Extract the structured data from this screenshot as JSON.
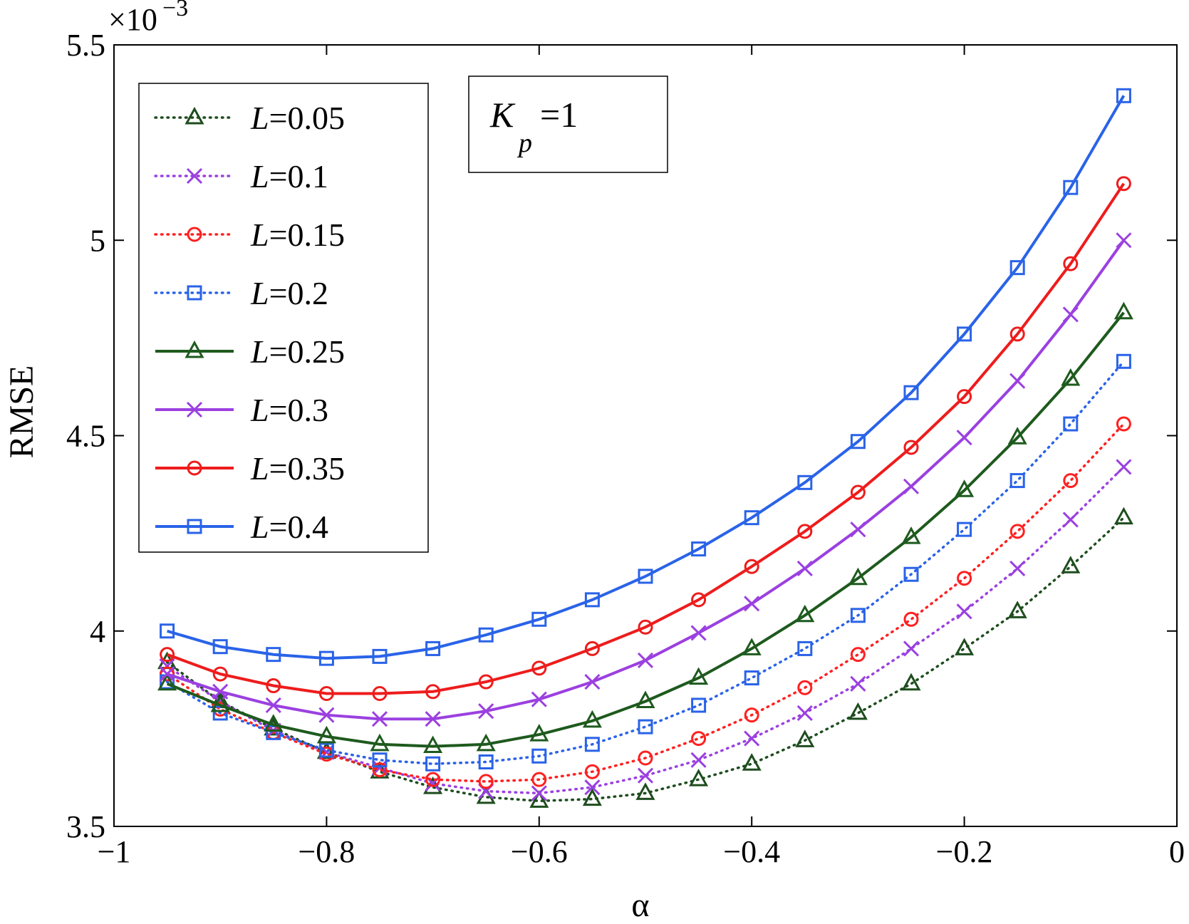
{
  "chart_data": {
    "type": "line",
    "xlabel": "α",
    "ylabel": "RMSE",
    "xlim": [
      -1,
      0
    ],
    "ylim": [
      3.5,
      5.5
    ],
    "y_exponent": "×10",
    "y_exponent_power": "−3",
    "xticks": [
      -1,
      -0.8,
      -0.6,
      -0.4,
      -0.2,
      0
    ],
    "xtick_labels": [
      "−1",
      "−0.8",
      "−0.6",
      "−0.4",
      "−0.2",
      "0"
    ],
    "yticks": [
      3.5,
      4,
      4.5,
      5,
      5.5
    ],
    "ytick_labels": [
      "3.5",
      "4",
      "4.5",
      "5",
      "5.5"
    ],
    "grid": false,
    "legend_position": "top-left",
    "annotation": {
      "main": "K",
      "sub": "p",
      "rest": "=1"
    },
    "x": [
      -0.95,
      -0.9,
      -0.85,
      -0.8,
      -0.75,
      -0.7,
      -0.65,
      -0.6,
      -0.55,
      -0.5,
      -0.45,
      -0.4,
      -0.35,
      -0.3,
      -0.25,
      -0.2,
      -0.15,
      -0.1,
      -0.05
    ],
    "series": [
      {
        "name": "L=0.05",
        "name_var": "L",
        "name_val": "=0.05",
        "color": "#1e4d1e",
        "marker": "triangle",
        "line": "dotted",
        "values": [
          3.92,
          3.82,
          3.75,
          3.69,
          3.64,
          3.6,
          3.575,
          3.565,
          3.57,
          3.585,
          3.62,
          3.66,
          3.72,
          3.79,
          3.865,
          3.955,
          4.05,
          4.165,
          4.29
        ]
      },
      {
        "name": "L=0.1",
        "name_var": "L",
        "name_val": "=0.1",
        "color": "#9b40e0",
        "marker": "x",
        "line": "dotted",
        "values": [
          3.91,
          3.82,
          3.745,
          3.69,
          3.65,
          3.61,
          3.59,
          3.585,
          3.6,
          3.63,
          3.67,
          3.725,
          3.79,
          3.865,
          3.955,
          4.05,
          4.16,
          4.285,
          4.42
        ]
      },
      {
        "name": "L=0.15",
        "name_var": "L",
        "name_val": "=0.15",
        "color": "#ff2020",
        "marker": "circle",
        "line": "dotted",
        "values": [
          3.89,
          3.8,
          3.74,
          3.685,
          3.645,
          3.62,
          3.615,
          3.62,
          3.64,
          3.675,
          3.725,
          3.785,
          3.855,
          3.94,
          4.03,
          4.135,
          4.255,
          4.385,
          4.53
        ]
      },
      {
        "name": "L=0.2",
        "name_var": "L",
        "name_val": "=0.2",
        "color": "#2a63e8",
        "marker": "square",
        "line": "dotted",
        "values": [
          3.87,
          3.79,
          3.74,
          3.695,
          3.67,
          3.66,
          3.665,
          3.68,
          3.71,
          3.755,
          3.81,
          3.88,
          3.955,
          4.04,
          4.145,
          4.26,
          4.385,
          4.53,
          4.69
        ]
      },
      {
        "name": "L=0.25",
        "name_var": "L",
        "name_val": "=0.25",
        "color": "#1e5a1e",
        "marker": "triangle",
        "line": "solid",
        "values": [
          3.865,
          3.81,
          3.76,
          3.73,
          3.71,
          3.705,
          3.71,
          3.735,
          3.77,
          3.82,
          3.88,
          3.955,
          4.04,
          4.135,
          4.24,
          4.36,
          4.495,
          4.645,
          4.815
        ]
      },
      {
        "name": "L=0.3",
        "name_var": "L",
        "name_val": "=0.3",
        "color": "#9b40e0",
        "marker": "x",
        "line": "solid",
        "values": [
          3.89,
          3.845,
          3.81,
          3.785,
          3.775,
          3.775,
          3.795,
          3.825,
          3.87,
          3.925,
          3.995,
          4.07,
          4.16,
          4.26,
          4.37,
          4.495,
          4.64,
          4.81,
          5.0
        ]
      },
      {
        "name": "L=0.35",
        "name_var": "L",
        "name_val": "=0.35",
        "color": "#ee1c1c",
        "marker": "circle",
        "line": "solid",
        "values": [
          3.94,
          3.89,
          3.86,
          3.84,
          3.84,
          3.845,
          3.87,
          3.905,
          3.955,
          4.01,
          4.08,
          4.165,
          4.255,
          4.355,
          4.47,
          4.6,
          4.76,
          4.94,
          5.145
        ]
      },
      {
        "name": "L=0.4",
        "name_var": "L",
        "name_val": "=0.4",
        "color": "#2a63e8",
        "marker": "square",
        "line": "solid",
        "values": [
          4.0,
          3.96,
          3.94,
          3.93,
          3.935,
          3.955,
          3.99,
          4.03,
          4.08,
          4.14,
          4.21,
          4.29,
          4.38,
          4.485,
          4.61,
          4.76,
          4.93,
          5.135,
          5.37
        ]
      }
    ]
  }
}
